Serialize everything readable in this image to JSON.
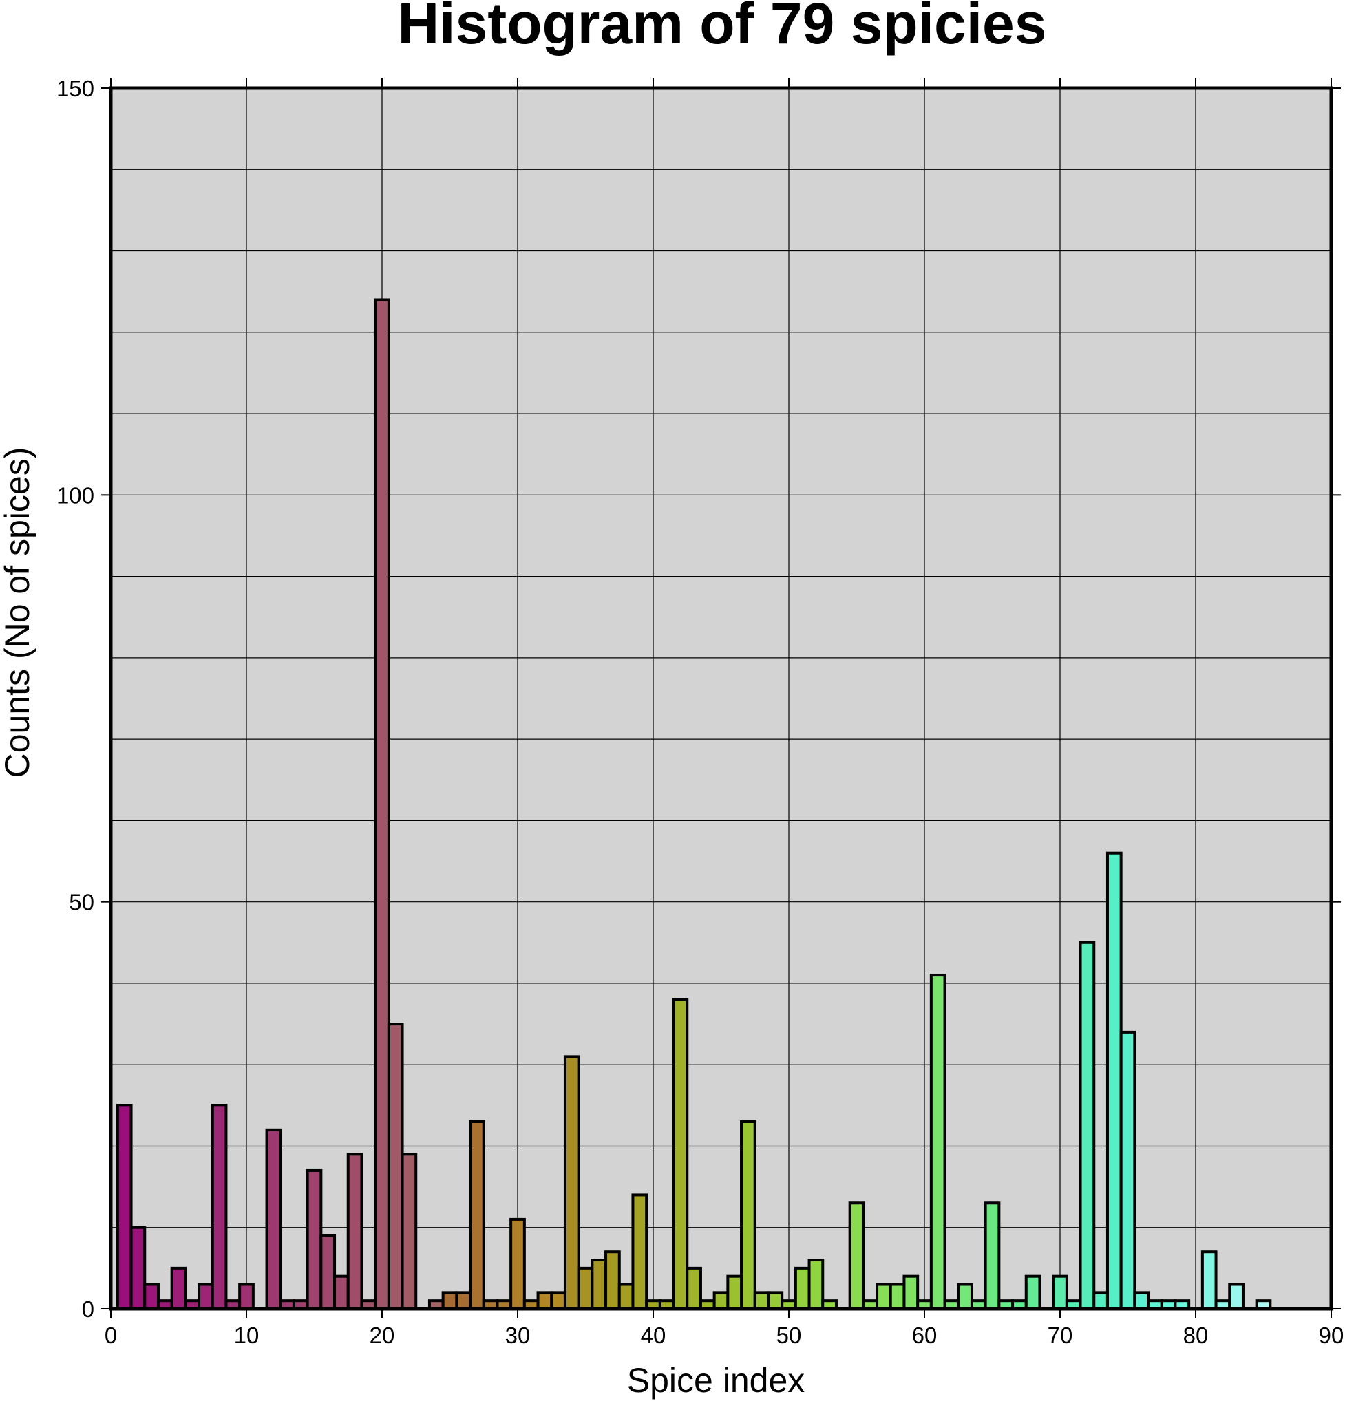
{
  "chart_data": {
    "type": "bar",
    "title": "Histogram of 79 spicies",
    "xlabel": "Spice index",
    "ylabel": "Counts (No of spices)",
    "xlim": [
      0,
      90
    ],
    "ylim": [
      0,
      150
    ],
    "xticks": [
      0,
      10,
      20,
      30,
      40,
      50,
      60,
      70,
      80,
      90
    ],
    "yticks": [
      0,
      50,
      100,
      150
    ],
    "y_gridlines": [
      0,
      10,
      20,
      30,
      40,
      50,
      60,
      70,
      80,
      90,
      100,
      110,
      120,
      130,
      140,
      150
    ],
    "grid": true,
    "background_color": "#d3d3d3",
    "bin_width": 1,
    "x": [
      1,
      2,
      3,
      4,
      5,
      6,
      7,
      8,
      9,
      10,
      11,
      12,
      13,
      14,
      15,
      16,
      17,
      18,
      19,
      20,
      21,
      22,
      23,
      24,
      25,
      26,
      27,
      28,
      29,
      30,
      31,
      32,
      33,
      34,
      35,
      36,
      37,
      38,
      39,
      40,
      41,
      42,
      43,
      44,
      45,
      46,
      47,
      48,
      49,
      50,
      51,
      52,
      53,
      54,
      55,
      56,
      57,
      58,
      59,
      60,
      61,
      62,
      63,
      64,
      65,
      66,
      67,
      68,
      69,
      70,
      71,
      72,
      73,
      74,
      75,
      76,
      77,
      78,
      79,
      80,
      81,
      82,
      83,
      84,
      85,
      86,
      87,
      88,
      89
    ],
    "values": [
      25,
      10,
      3,
      1,
      5,
      1,
      3,
      25,
      1,
      3,
      0,
      22,
      1,
      1,
      17,
      9,
      4,
      19,
      1,
      124,
      35,
      19,
      0,
      1,
      2,
      2,
      23,
      1,
      1,
      11,
      1,
      2,
      2,
      31,
      5,
      6,
      7,
      3,
      14,
      1,
      1,
      38,
      5,
      1,
      2,
      4,
      23,
      2,
      2,
      1,
      5,
      6,
      1,
      0,
      13,
      1,
      3,
      3,
      4,
      1,
      41,
      1,
      3,
      1,
      13,
      1,
      1,
      4,
      0,
      4,
      1,
      45,
      2,
      56,
      34,
      2,
      1,
      1,
      1,
      0,
      7,
      1,
      3,
      0,
      1,
      0,
      0,
      0,
      0
    ],
    "colors": [
      "#9a0f7b",
      "#9b137a",
      "#9b1679",
      "#9b1a78",
      "#9c1e77",
      "#9c2276",
      "#9c2575",
      "#9c2974",
      "#9d2d73",
      "#9d3172",
      "#9d3471",
      "#9e3870",
      "#9e3b6f",
      "#9e3f6e",
      "#9e436d",
      "#9f476c",
      "#9f4a6b",
      "#9f4e6a",
      "#a05269",
      "#a05668",
      "#a05967",
      "#a15d66",
      "#a16165",
      "#a26464",
      "#a66a33",
      "#a86e31",
      "#a9722f",
      "#ab762d",
      "#ad7a2b",
      "#ae7e29",
      "#b08227",
      "#b28625",
      "#b38a23",
      "#a88e22",
      "#a79322",
      "#a69723",
      "#a59b23",
      "#a49f24",
      "#a3a325",
      "#a2a826",
      "#a1ac27",
      "#a0b028",
      "#9fb42a",
      "#9eb82c",
      "#9cbc2e",
      "#9bc030",
      "#9ac432",
      "#98c735",
      "#97cb38",
      "#95ce3b",
      "#93d23e",
      "#91d441",
      "#8fd745",
      "#8dd949",
      "#8bdb4e",
      "#88dd52",
      "#86df57",
      "#83e15c",
      "#80e261",
      "#7de466",
      "#7ae56c",
      "#77e671",
      "#73e777",
      "#70e87d",
      "#6ce883",
      "#69e989",
      "#65ea8f",
      "#62ea95",
      "#5eeb9b",
      "#5becab",
      "#58edb3",
      "#56edbb",
      "#55eec1",
      "#56efc6",
      "#58f0cb",
      "#5cf1d0",
      "#62f2d4",
      "#69f3d8",
      "#71f4dc",
      "#7af5e0",
      "#84f6e4",
      "#8ef7e8",
      "#98f8ec",
      "#a2f9ef",
      "#acfaf2",
      "#b6fbf5",
      "#c0fcf8",
      "#cafdfa",
      "#d4fefc"
    ]
  }
}
